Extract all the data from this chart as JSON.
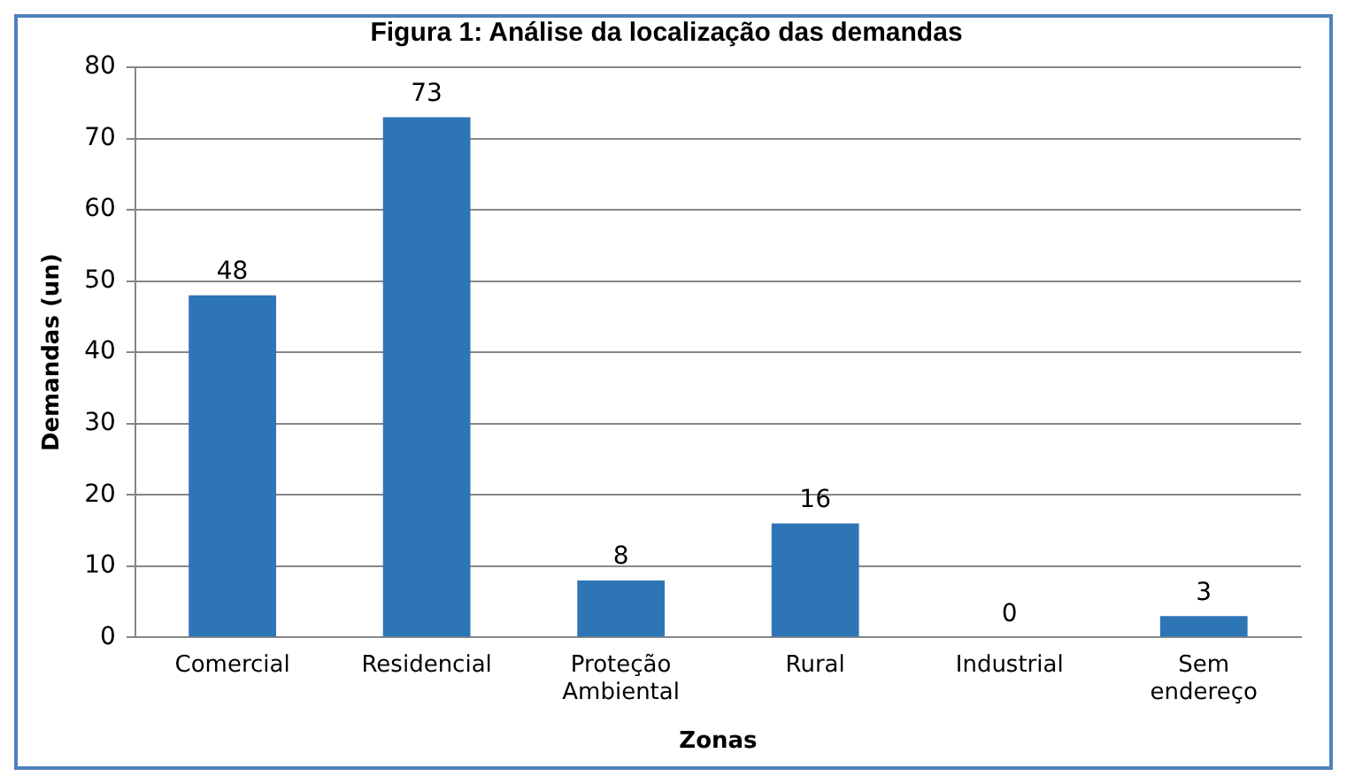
{
  "chart_data": {
    "type": "bar",
    "title": "Figura 1: Análise da localização das demandas",
    "xlabel": "Zonas",
    "ylabel": "Demandas (un)",
    "categories": [
      "Comercial",
      "Residencial",
      "Proteção Ambiental",
      "Rural",
      "Industrial",
      "Sem endereço"
    ],
    "values": [
      48,
      73,
      8,
      16,
      0,
      3
    ],
    "color": "#2e75b6",
    "ylim": [
      0,
      80
    ],
    "yticks": [
      0,
      10,
      20,
      30,
      40,
      50,
      60,
      70,
      80
    ],
    "grid": "y",
    "data_labels": true,
    "legend": false
  }
}
